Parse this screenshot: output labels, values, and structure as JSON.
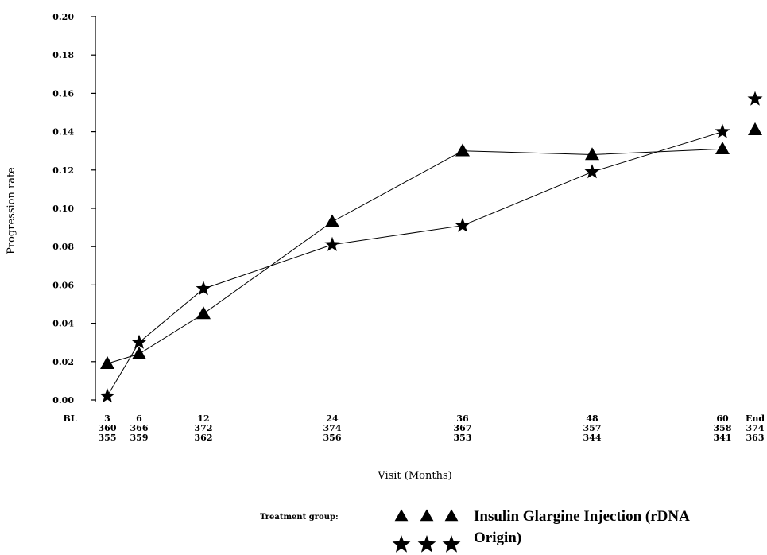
{
  "chart_data": {
    "type": "line",
    "title": "",
    "xlabel": "Visit (Months)",
    "ylabel": "Progression rate",
    "ylim": [
      0,
      0.2
    ],
    "yticks": [
      "0.00",
      "0.02",
      "0.04",
      "0.06",
      "0.08",
      "0.10",
      "0.12",
      "0.14",
      "0.16",
      "0.18",
      "0.20"
    ],
    "x_categories": [
      {
        "label": "BL",
        "n1": "",
        "n2": ""
      },
      {
        "label": "3",
        "n1": "360",
        "n2": "355"
      },
      {
        "label": "6",
        "n1": "366",
        "n2": "359"
      },
      {
        "label": "12",
        "n1": "372",
        "n2": "362"
      },
      {
        "label": "24",
        "n1": "374",
        "n2": "356"
      },
      {
        "label": "36",
        "n1": "367",
        "n2": "353"
      },
      {
        "label": "48",
        "n1": "357",
        "n2": "344"
      },
      {
        "label": "60",
        "n1": "358",
        "n2": "341"
      },
      {
        "label": "End",
        "n1": "374",
        "n2": "363"
      }
    ],
    "series": [
      {
        "marker": "triangle",
        "points": [
          {
            "x": "3",
            "y": 0.019
          },
          {
            "x": "6",
            "y": 0.024
          },
          {
            "x": "12",
            "y": 0.045
          },
          {
            "x": "24",
            "y": 0.093
          },
          {
            "x": "36",
            "y": 0.13
          },
          {
            "x": "48",
            "y": 0.128
          },
          {
            "x": "60",
            "y": 0.131
          }
        ],
        "end": 0.141
      },
      {
        "marker": "star",
        "points": [
          {
            "x": "3",
            "y": 0.002
          },
          {
            "x": "6",
            "y": 0.03
          },
          {
            "x": "12",
            "y": 0.058
          },
          {
            "x": "24",
            "y": 0.081
          },
          {
            "x": "36",
            "y": 0.091
          },
          {
            "x": "48",
            "y": 0.119
          },
          {
            "x": "60",
            "y": 0.14
          }
        ],
        "end": 0.157
      }
    ],
    "legend": {
      "caption": "Treatment group:",
      "entries": [
        {
          "marker": "triangle",
          "label": "Insulin Glargine Injection (rDNA"
        },
        {
          "marker": "star",
          "label": "Origin)"
        }
      ]
    }
  }
}
